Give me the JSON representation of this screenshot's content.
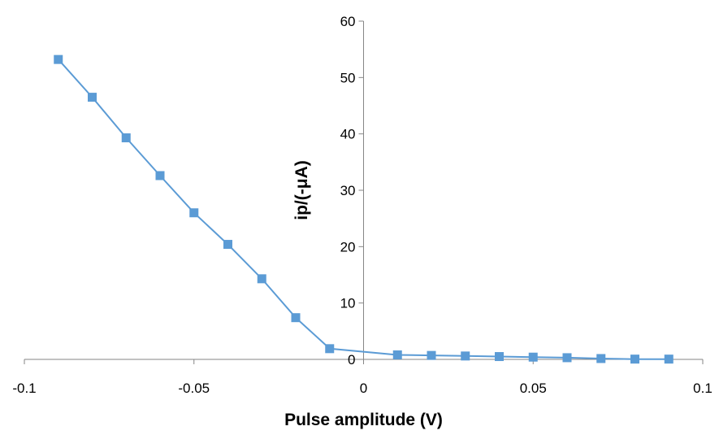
{
  "chart_data": {
    "type": "line",
    "title": "",
    "xlabel": "Pulse amplitude (V)",
    "ylabel": "ip/(-μA)",
    "xlim": [
      -0.1,
      0.1
    ],
    "ylim": [
      0,
      60
    ],
    "x_ticks": [
      "-0.1",
      "-0.05",
      "0",
      "0.05",
      "0.1"
    ],
    "y_ticks": [
      "0",
      "10",
      "20",
      "30",
      "40",
      "50",
      "60"
    ],
    "grid": false,
    "legend": "none",
    "series": [
      {
        "color": "#5B9BD5",
        "marker": "square",
        "x": [
          -0.09,
          -0.08,
          -0.07,
          -0.06,
          -0.05,
          -0.04,
          -0.03,
          -0.02,
          -0.01,
          0.01,
          0.02,
          0.03,
          0.04,
          0.05,
          0.06,
          0.07,
          0.08,
          0.09
        ],
        "y": [
          53.2,
          46.5,
          39.3,
          32.6,
          26.0,
          20.4,
          14.3,
          7.4,
          1.9,
          0.8,
          0.7,
          0.6,
          0.5,
          0.4,
          0.3,
          0.15,
          0.05,
          0.05
        ]
      }
    ]
  }
}
